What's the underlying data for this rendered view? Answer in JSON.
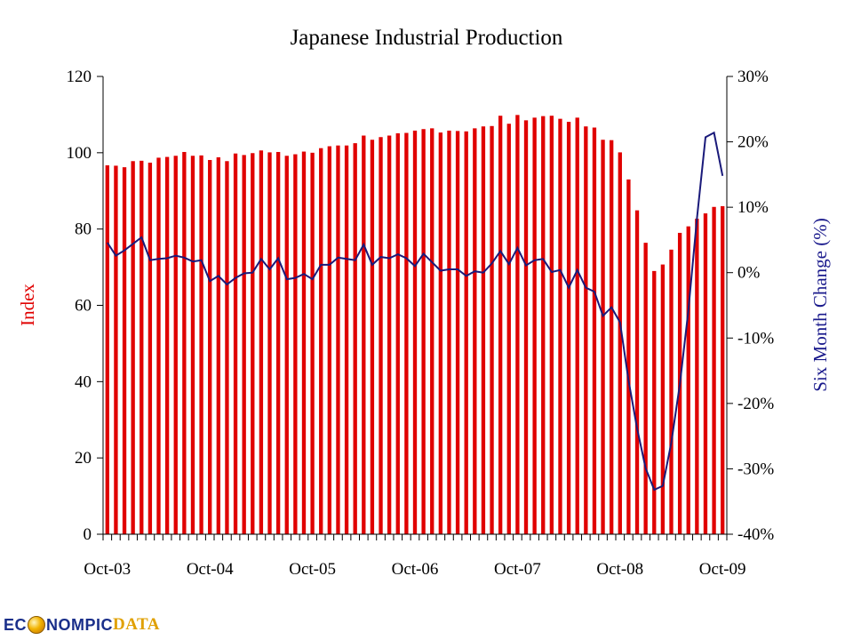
{
  "chart_data": {
    "type": "bar",
    "title": "Japanese Industrial Production",
    "ylabel": "Index",
    "ylabel_right": "Six Month Change (%)",
    "ylim": [
      0,
      120
    ],
    "ylim_right": [
      -40,
      30
    ],
    "yticks": [
      "0",
      "20",
      "40",
      "60",
      "80",
      "100",
      "120"
    ],
    "yticks_right": [
      "-40%",
      "-30%",
      "-20%",
      "-10%",
      "0%",
      "10%",
      "20%",
      "30%"
    ],
    "x_tick_labels": [
      "Oct-03",
      "Oct-04",
      "Oct-05",
      "Oct-06",
      "Oct-07",
      "Oct-08",
      "Oct-09"
    ],
    "categories": [
      "Oct-03",
      "Nov-03",
      "Dec-03",
      "Jan-04",
      "Feb-04",
      "Mar-04",
      "Apr-04",
      "May-04",
      "Jun-04",
      "Jul-04",
      "Aug-04",
      "Sep-04",
      "Oct-04",
      "Nov-04",
      "Dec-04",
      "Jan-05",
      "Feb-05",
      "Mar-05",
      "Apr-05",
      "May-05",
      "Jun-05",
      "Jul-05",
      "Aug-05",
      "Sep-05",
      "Oct-05",
      "Nov-05",
      "Dec-05",
      "Jan-06",
      "Feb-06",
      "Mar-06",
      "Apr-06",
      "May-06",
      "Jun-06",
      "Jul-06",
      "Aug-06",
      "Sep-06",
      "Oct-06",
      "Nov-06",
      "Dec-06",
      "Jan-07",
      "Feb-07",
      "Mar-07",
      "Apr-07",
      "May-07",
      "Jun-07",
      "Jul-07",
      "Aug-07",
      "Sep-07",
      "Oct-07",
      "Nov-07",
      "Dec-07",
      "Jan-08",
      "Feb-08",
      "Mar-08",
      "Apr-08",
      "May-08",
      "Jun-08",
      "Jul-08",
      "Aug-08",
      "Sep-08",
      "Oct-08",
      "Nov-08",
      "Dec-08",
      "Jan-09",
      "Feb-09",
      "Mar-09",
      "Apr-09",
      "May-09",
      "Jun-09",
      "Jul-09",
      "Aug-09",
      "Sep-09",
      "Oct-09"
    ],
    "series": [
      {
        "name": "Index",
        "axis": "left",
        "color": "#e00000",
        "values": [
          96.7,
          96.6,
          96.2,
          97.8,
          97.9,
          97.4,
          98.7,
          98.9,
          99.2,
          100.2,
          99.2,
          99.3,
          98.1,
          98.8,
          97.8,
          99.8,
          99.4,
          99.9,
          100.6,
          100.1,
          100.2,
          99.2,
          99.6,
          100.3,
          100.0,
          101.2,
          101.7,
          101.9,
          101.9,
          102.5,
          104.5,
          103.4,
          104.1,
          104.5,
          105.1,
          105.2,
          105.8,
          106.2,
          106.4,
          105.3,
          105.8,
          105.7,
          105.6,
          106.4,
          106.9,
          107.0,
          109.7,
          107.6,
          109.9,
          108.5,
          109.2,
          109.6,
          109.7,
          108.9,
          108.1,
          109.2,
          106.9,
          106.6,
          103.4,
          103.3,
          100.1,
          93.0,
          84.9,
          76.4,
          69.0,
          70.7,
          74.6,
          79.0,
          80.7,
          82.7,
          84.1,
          85.8,
          86.0
        ]
      },
      {
        "name": "Six Month Change (%)",
        "axis": "right",
        "color": "#1a1a7a",
        "values": [
          4.6,
          2.6,
          3.4,
          4.4,
          5.4,
          1.9,
          2.1,
          2.2,
          2.6,
          2.3,
          1.7,
          1.9,
          -1.3,
          -0.5,
          -1.8,
          -0.8,
          -0.1,
          0.0,
          2.1,
          0.5,
          2.2,
          -1.0,
          -0.8,
          -0.2,
          -1.0,
          1.2,
          1.2,
          2.3,
          2.1,
          1.9,
          4.3,
          1.2,
          2.4,
          2.2,
          2.8,
          2.2,
          1.0,
          2.9,
          1.6,
          0.3,
          0.5,
          0.5,
          -0.5,
          0.2,
          0.0,
          1.4,
          3.3,
          1.3,
          3.8,
          1.1,
          1.9,
          2.1,
          0.1,
          0.4,
          -2.3,
          0.4,
          -2.3,
          -2.9,
          -6.6,
          -5.3,
          -7.6,
          -16.5,
          -23.8,
          -29.9,
          -33.2,
          -32.6,
          -26.0,
          -17.1,
          -5.8,
          8.2,
          20.7,
          21.4,
          14.8
        ]
      }
    ],
    "grid": false,
    "legend": "none"
  },
  "watermark": {
    "part1": "EC",
    "part2": "NOMPIC",
    "part3": "DATA"
  }
}
